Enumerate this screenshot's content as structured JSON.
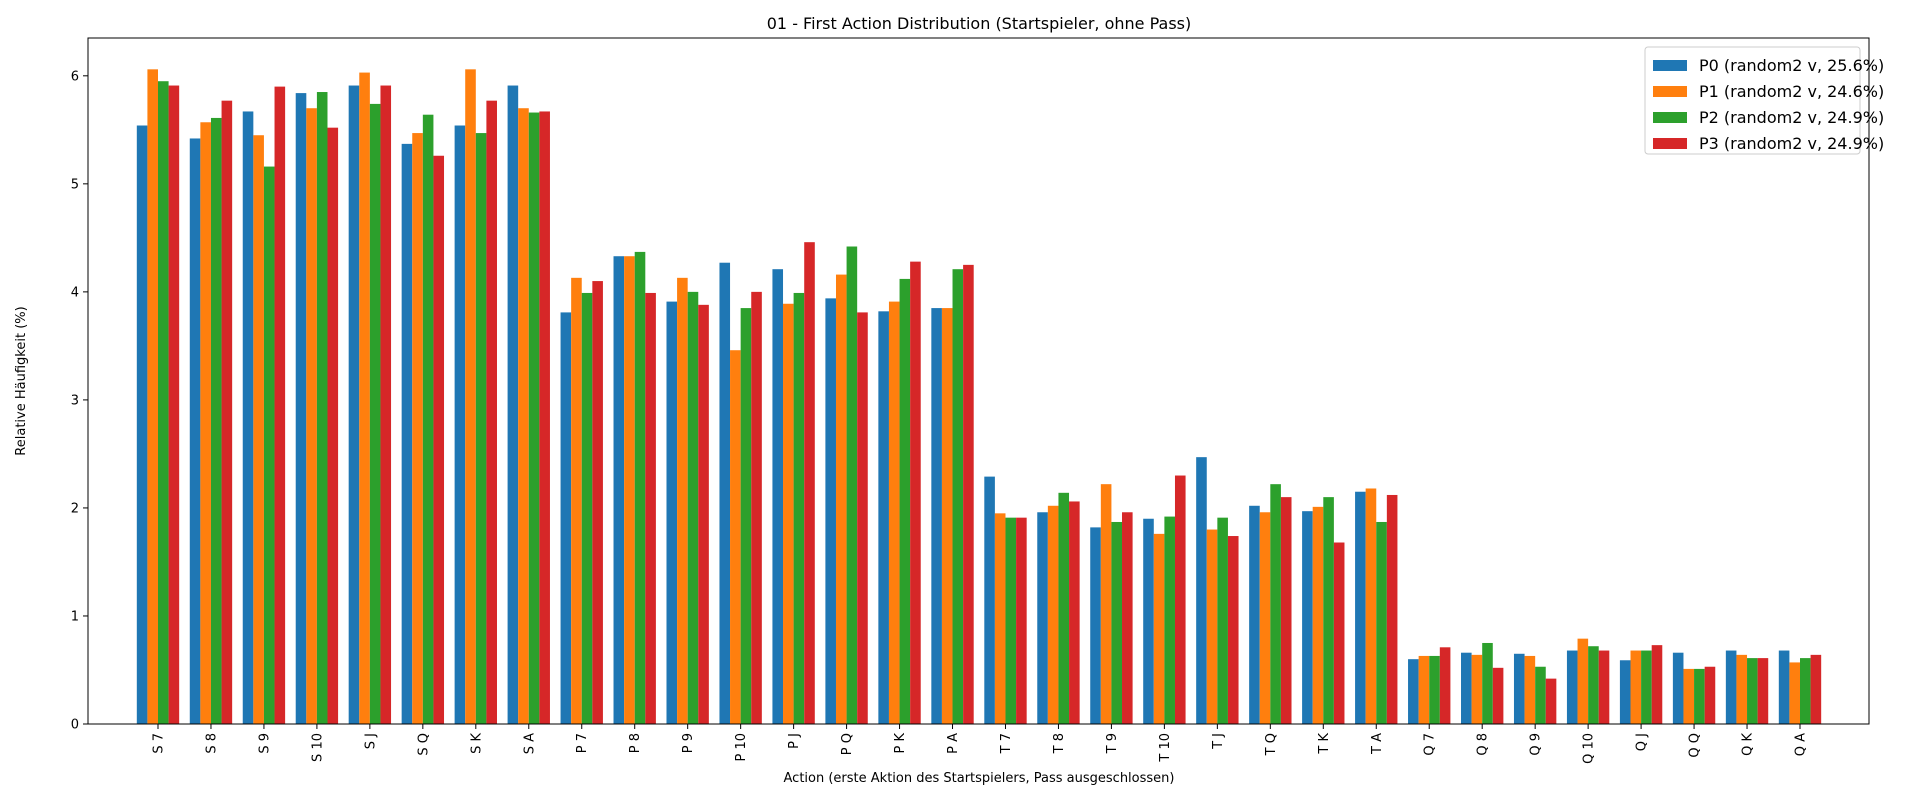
{
  "chart_data": {
    "type": "bar",
    "title": "01 - First Action Distribution (Startspieler, ohne Pass)",
    "xlabel": "Action (erste Aktion des Startspielers, Pass ausgeschlossen)",
    "ylabel": "Relative Häufigkeit (%)",
    "ylim": [
      0,
      6.35
    ],
    "yticks": [
      0,
      1,
      2,
      3,
      4,
      5,
      6
    ],
    "ytick_labels": [
      "0",
      "1",
      "2",
      "3",
      "4",
      "5",
      "6"
    ],
    "grid": false,
    "legend_position": "top-right",
    "categories": [
      "S 7",
      "S 8",
      "S 9",
      "S 10",
      "S J",
      "S Q",
      "S K",
      "S A",
      "P 7",
      "P 8",
      "P 9",
      "P 10",
      "P J",
      "P Q",
      "P K",
      "P A",
      "T 7",
      "T 8",
      "T 9",
      "T 10",
      "T J",
      "T Q",
      "T K",
      "T A",
      "Q 7",
      "Q 8",
      "Q 9",
      "Q 10",
      "Q J",
      "Q Q",
      "Q K",
      "Q A"
    ],
    "series": [
      {
        "name": "P0 (random2 v, 25.6%)",
        "color": "#1f77b4",
        "values": [
          5.54,
          5.42,
          5.67,
          5.84,
          5.91,
          5.37,
          5.54,
          5.91,
          3.81,
          4.33,
          3.91,
          4.27,
          4.21,
          3.94,
          3.82,
          3.85,
          2.29,
          1.96,
          1.82,
          1.9,
          2.47,
          2.02,
          1.97,
          2.15,
          0.6,
          0.66,
          0.65,
          0.68,
          0.59,
          0.66,
          0.68,
          0.68
        ]
      },
      {
        "name": "P1 (random2 v, 24.6%)",
        "color": "#ff7f0e",
        "values": [
          6.06,
          5.57,
          5.45,
          5.7,
          6.03,
          5.47,
          6.06,
          5.7,
          4.13,
          4.33,
          4.13,
          3.46,
          3.89,
          4.16,
          3.91,
          3.85,
          1.95,
          2.02,
          2.22,
          1.76,
          1.8,
          1.96,
          2.01,
          2.18,
          0.63,
          0.64,
          0.63,
          0.79,
          0.68,
          0.51,
          0.64,
          0.57
        ]
      },
      {
        "name": "P2 (random2 v, 24.9%)",
        "color": "#2ca02c",
        "values": [
          5.95,
          5.61,
          5.16,
          5.85,
          5.74,
          5.64,
          5.47,
          5.66,
          3.99,
          4.37,
          4.0,
          3.85,
          3.99,
          4.42,
          4.12,
          4.21,
          1.91,
          2.14,
          1.87,
          1.92,
          1.91,
          2.22,
          2.1,
          1.87,
          0.63,
          0.75,
          0.53,
          0.72,
          0.68,
          0.51,
          0.61,
          0.61
        ]
      },
      {
        "name": "P3 (random2 v, 24.9%)",
        "color": "#d62728",
        "values": [
          5.91,
          5.77,
          5.9,
          5.52,
          5.91,
          5.26,
          5.77,
          5.67,
          4.1,
          3.99,
          3.88,
          4.0,
          4.46,
          3.81,
          4.28,
          4.25,
          1.91,
          2.06,
          1.96,
          2.3,
          1.74,
          2.1,
          1.68,
          2.12,
          0.71,
          0.52,
          0.42,
          0.68,
          0.73,
          0.53,
          0.61,
          0.64
        ]
      }
    ]
  }
}
